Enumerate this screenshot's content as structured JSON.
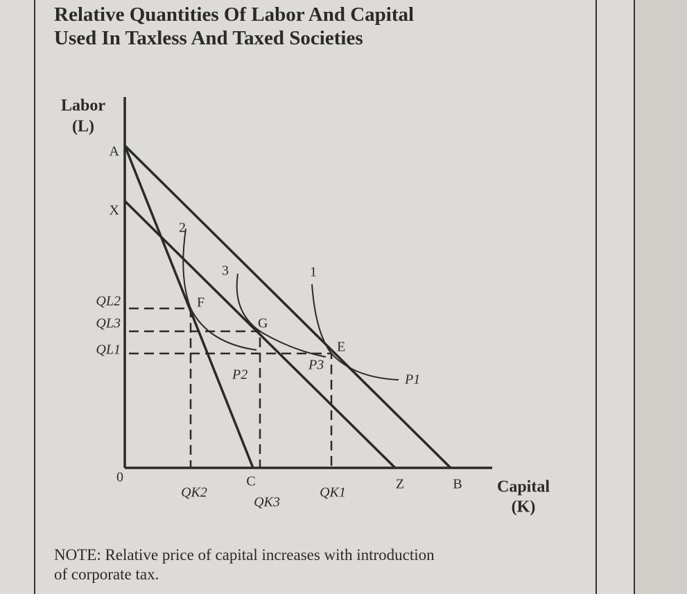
{
  "title": [
    "Relative Quantities Of Labor And Capital",
    "Used In Taxless And Taxed Societies"
  ],
  "y_axis_label": [
    "Labor",
    "(L)"
  ],
  "x_axis_label": [
    "Capital",
    "(K)"
  ],
  "origin": "0",
  "y_labels": [
    "A",
    "X",
    "QL2",
    "QL3",
    "QL1"
  ],
  "x_labels": [
    "QK2",
    "C",
    "QK3",
    "QK1",
    "Z",
    "B"
  ],
  "points": [
    "F",
    "G",
    "E"
  ],
  "curves": [
    "2",
    "3",
    "1"
  ],
  "curve_ends": [
    "P2",
    "P3",
    "P1"
  ],
  "note": [
    "NOTE: Relative price of capital increases with introduction",
    "of corporate tax."
  ]
}
